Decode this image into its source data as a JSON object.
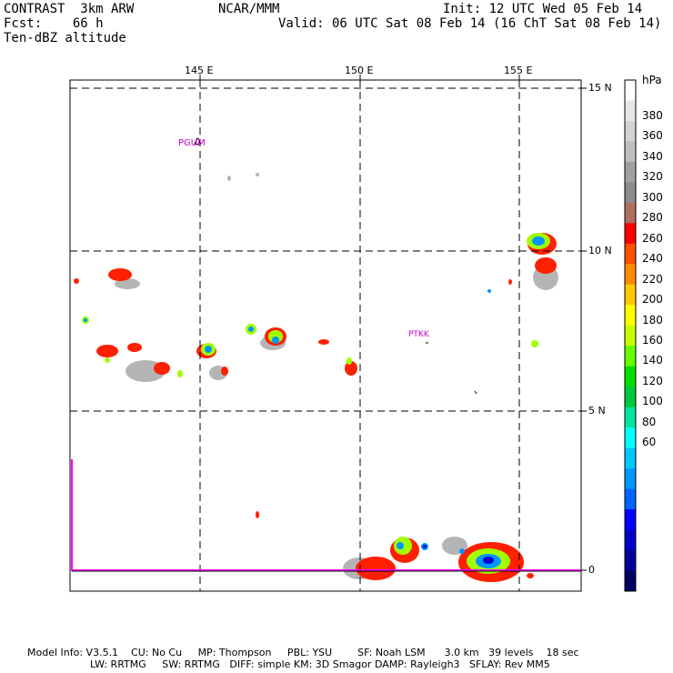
{
  "header": {
    "left_line1": "CONTRAST  3km ARW",
    "left_line2": "Fcst:    66 h",
    "left_line3": "Ten-dBZ altitude",
    "center": "NCAR/MMM",
    "init": "Init: 12 UTC Wed 05 Feb 14",
    "valid": "Valid: 06 UTC Sat 08 Feb 14 (16 ChT Sat 08 Feb 14)"
  },
  "map": {
    "lon_labels": [
      "145 E",
      "150 E",
      "155 E"
    ],
    "lat_labels": [
      "15 N",
      "10 N",
      "5 N",
      "0"
    ],
    "stations": [
      "PGUM",
      "PTKK"
    ]
  },
  "colorbar": {
    "unit": "hPa",
    "labels": [
      "380",
      "360",
      "340",
      "320",
      "300",
      "280",
      "260",
      "240",
      "220",
      "200",
      "180",
      "160",
      "140",
      "120",
      "100",
      "80",
      "60"
    ],
    "colors": [
      "#ffffff",
      "#e6e6e6",
      "#d2d2d2",
      "#bebebe",
      "#a0a0a0",
      "#8c8c8c",
      "#b07060",
      "#ff0000",
      "#ff5000",
      "#ff8c00",
      "#ffc800",
      "#ffff00",
      "#c8ff00",
      "#64ff00",
      "#00e000",
      "#00c83c",
      "#00e6a0",
      "#00ffff",
      "#00c8ff",
      "#0096ff",
      "#0064ff",
      "#0000ff",
      "#0000c8",
      "#00009a",
      "#000064"
    ]
  },
  "footer": {
    "line1": "Model Info: V3.5.1    CU: No Cu     MP: Thompson     PBL: YSU        SF: Noah LSM      3.0 km   39 levels    18 sec",
    "line2": "LW: RRTMG     SW: RRTMG   DIFF: simple KM: 3D Smagor DAMP: Rayleigh3   SFLAY: Rev MM5"
  }
}
